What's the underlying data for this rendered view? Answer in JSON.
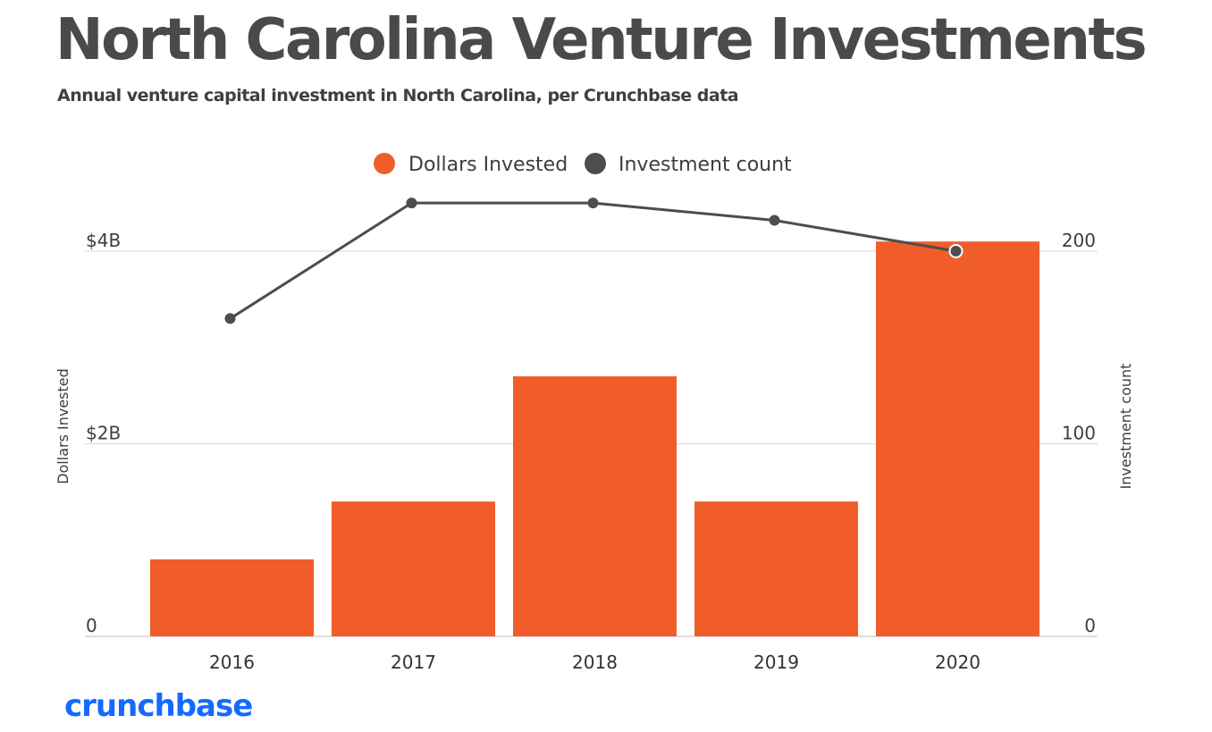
{
  "title": "North Carolina Venture Investments",
  "subtitle": "Annual venture capital investment in North Carolina, per Crunchbase data",
  "logo": "crunchbase",
  "colors": {
    "bar": "#f05d2a",
    "line": "#4d4d4d",
    "title": "#4a4a4a",
    "grid": "#d9d9d9",
    "logo": "#146aff"
  },
  "chart_data": {
    "type": "bar",
    "categories": [
      "2016",
      "2017",
      "2018",
      "2019",
      "2020"
    ],
    "series": [
      {
        "name": "Dollars Invested",
        "type": "bar",
        "axis": "left",
        "values": [
          0.8,
          1.4,
          2.7,
          1.4,
          4.1
        ],
        "unit": "billion USD"
      },
      {
        "name": "Investment count",
        "type": "line",
        "axis": "right",
        "values": [
          165,
          225,
          225,
          216,
          200
        ]
      }
    ],
    "left_axis": {
      "label": "Dollars Invested",
      "ylim": [
        0,
        4
      ],
      "ticks": [
        0,
        2,
        4
      ],
      "tick_labels": [
        "0",
        "$2B",
        "$4B"
      ]
    },
    "right_axis": {
      "label": "Investment count",
      "ylim": [
        0,
        200
      ],
      "ticks": [
        0,
        100,
        200
      ],
      "tick_labels": [
        "0",
        "100",
        "200"
      ]
    },
    "grid": true,
    "legend_position": "top-center"
  }
}
